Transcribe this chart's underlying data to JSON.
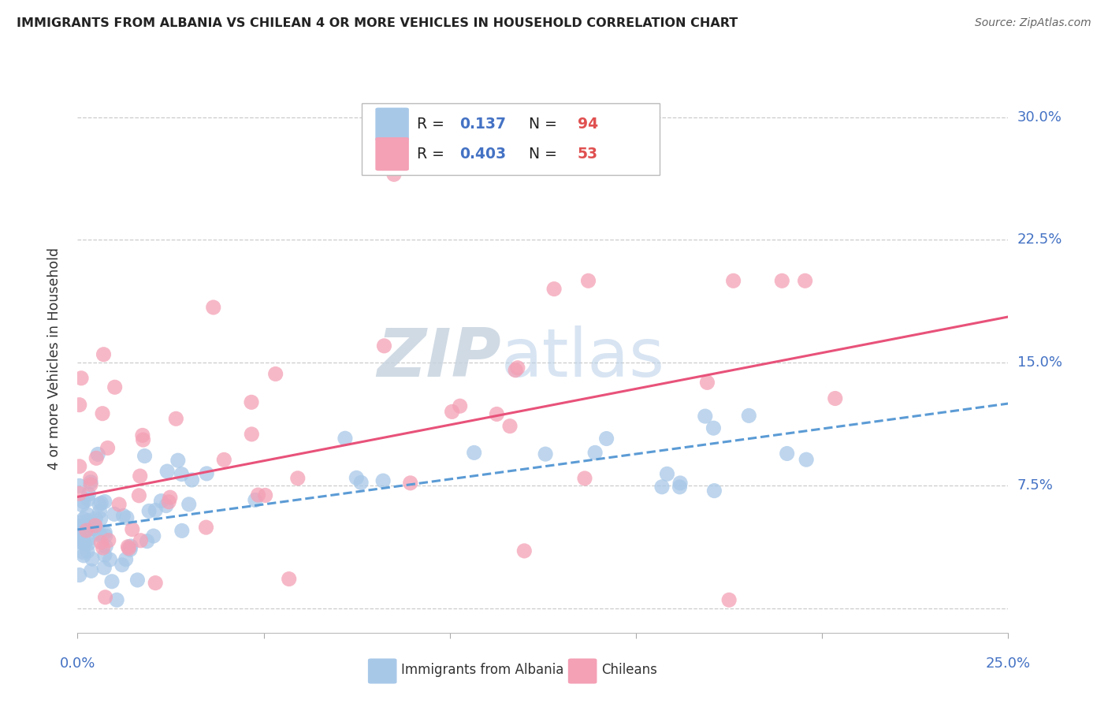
{
  "title": "IMMIGRANTS FROM ALBANIA VS CHILEAN 4 OR MORE VEHICLES IN HOUSEHOLD CORRELATION CHART",
  "source": "Source: ZipAtlas.com",
  "ylabel": "4 or more Vehicles in Household",
  "xlim": [
    0.0,
    0.25
  ],
  "ylim": [
    -0.015,
    0.32
  ],
  "ytick_vals": [
    0.0,
    0.075,
    0.15,
    0.225,
    0.3
  ],
  "ytick_labels": [
    "",
    "7.5%",
    "15.0%",
    "22.5%",
    "30.0%"
  ],
  "xtick_vals": [
    0.0,
    0.05,
    0.1,
    0.15,
    0.2,
    0.25
  ],
  "albania_R": 0.137,
  "albania_N": 94,
  "chilean_R": 0.403,
  "chilean_N": 53,
  "albania_scatter_color": "#a8c8e8",
  "chilean_scatter_color": "#f4a0b5",
  "albania_line_color": "#5b9bd5",
  "chilean_line_color": "#e8527a",
  "label_color": "#4472C4",
  "legend_label_albania": "Immigrants from Albania",
  "legend_label_chilean": "Chileans",
  "albania_trend_start": 0.048,
  "albania_trend_end": 0.125,
  "chilean_trend_start": 0.068,
  "chilean_trend_end": 0.178,
  "grid_color": "#cccccc",
  "title_color": "#222222"
}
